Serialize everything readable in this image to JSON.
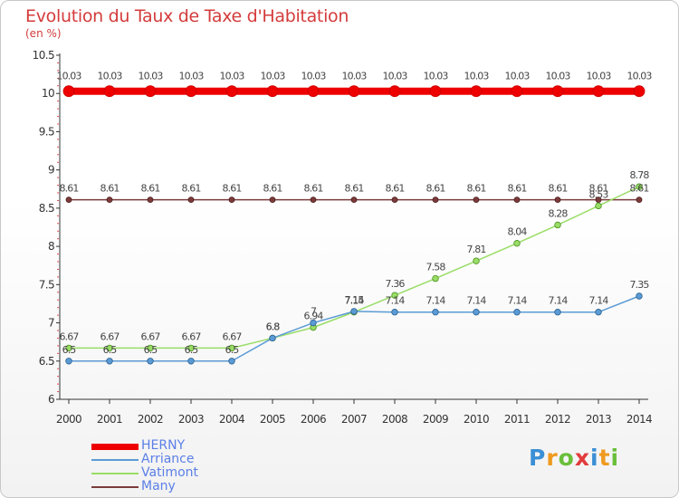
{
  "header": {
    "title": "Evolution du Taux de Taxe d'Habitation",
    "unit": "(en %)"
  },
  "chart_data": {
    "type": "line",
    "title": "Evolution du Taux de Taxe d'Habitation",
    "ylabel": "(en %)",
    "xlabel": "",
    "x": [
      "2000",
      "2001",
      "2002",
      "2003",
      "2004",
      "2005",
      "2006",
      "2007",
      "2008",
      "2009",
      "2010",
      "2011",
      "2012",
      "2013",
      "2014"
    ],
    "ylim": [
      6,
      10.5
    ],
    "yticks": [
      "6",
      "6.5",
      "7",
      "7.5",
      "8",
      "8.5",
      "9",
      "9.5",
      "10",
      "10.5"
    ],
    "grid": false,
    "legend_position": "bottom-left",
    "series": [
      {
        "name": "HERNY",
        "color": "#ee0000",
        "values": [
          10.03,
          10.03,
          10.03,
          10.03,
          10.03,
          10.03,
          10.03,
          10.03,
          10.03,
          10.03,
          10.03,
          10.03,
          10.03,
          10.03,
          10.03
        ],
        "labels": [
          "10.03",
          "10.03",
          "10.03",
          "10.03",
          "10.03",
          "10.03",
          "10.03",
          "10.03",
          "10.03",
          "10.03",
          "10.03",
          "10.03",
          "10.03",
          "10.03",
          "10.03"
        ]
      },
      {
        "name": "Arriance",
        "color": "#5b9bd5",
        "values": [
          6.5,
          6.5,
          6.5,
          6.5,
          6.5,
          6.8,
          7.0,
          7.15,
          7.14,
          7.14,
          7.14,
          7.14,
          7.14,
          7.14,
          7.35
        ],
        "labels": [
          "6.5",
          "6.5",
          "6.5",
          "6.5",
          "6.5",
          "6.8",
          "7",
          "7.15",
          "7.14",
          "7.14",
          "7.14",
          "7.14",
          "7.14",
          "7.14",
          "7.35"
        ]
      },
      {
        "name": "Vatimont",
        "color": "#99dd66",
        "values": [
          6.67,
          6.67,
          6.67,
          6.67,
          6.67,
          6.8,
          6.94,
          7.14,
          7.36,
          7.58,
          7.81,
          8.04,
          8.28,
          8.53,
          8.78
        ],
        "labels": [
          "6.67",
          "6.67",
          "6.67",
          "6.67",
          "6.67",
          "6.8",
          "6.94",
          "7.14",
          "7.36",
          "7.58",
          "7.81",
          "8.04",
          "8.28",
          "8.53",
          "8.78"
        ]
      },
      {
        "name": "Many",
        "color": "#7b3b3b",
        "values": [
          8.61,
          8.61,
          8.61,
          8.61,
          8.61,
          8.61,
          8.61,
          8.61,
          8.61,
          8.61,
          8.61,
          8.61,
          8.61,
          8.61,
          8.61
        ],
        "labels": [
          "8.61",
          "8.61",
          "8.61",
          "8.61",
          "8.61",
          "8.61",
          "8.61",
          "8.61",
          "8.61",
          "8.61",
          "8.61",
          "8.61",
          "8.61",
          "8.61",
          "8.61"
        ]
      }
    ]
  },
  "legend": {
    "items": [
      {
        "label": "HERNY",
        "color": "#ee0000"
      },
      {
        "label": "Arriance",
        "color": "#5b9bd5"
      },
      {
        "label": "Vatimont",
        "color": "#99dd66"
      },
      {
        "label": "Many",
        "color": "#7b3b3b"
      }
    ]
  },
  "logo": {
    "letters": [
      "P",
      "r",
      "o",
      "x",
      "i",
      "t",
      "i"
    ],
    "colors": [
      "#3b8fd6",
      "#ef9a1f",
      "#6abf3a",
      "#e23b3b",
      "#3b8fd6",
      "#ef9a1f",
      "#6abf3a"
    ]
  }
}
